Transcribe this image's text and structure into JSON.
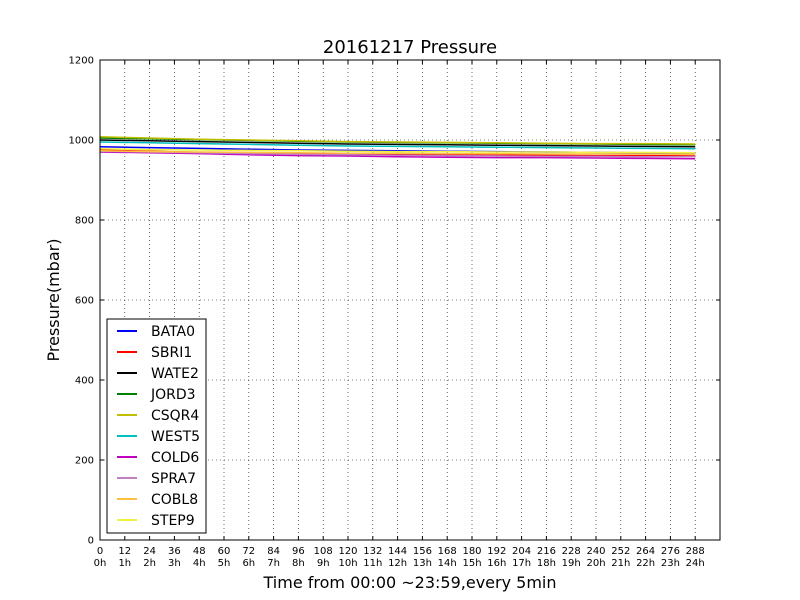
{
  "chart_data": {
    "type": "line",
    "title": "20161217 Pressure",
    "xlabel": "Time from 00:00 ~23:59,every 5min",
    "ylabel": "Pressure(mbar)",
    "xlim": [
      0,
      300
    ],
    "ylim": [
      0,
      1200
    ],
    "grid": true,
    "legend_position": "lower-left",
    "y_ticks": [
      0,
      200,
      400,
      600,
      800,
      1000,
      1200
    ],
    "x_ticks": [
      {
        "value": 0,
        "line1": "0",
        "line2": "0h"
      },
      {
        "value": 12,
        "line1": "12",
        "line2": "1h"
      },
      {
        "value": 24,
        "line1": "24",
        "line2": "2h"
      },
      {
        "value": 36,
        "line1": "36",
        "line2": "3h"
      },
      {
        "value": 48,
        "line1": "48",
        "line2": "4h"
      },
      {
        "value": 60,
        "line1": "60",
        "line2": "5h"
      },
      {
        "value": 72,
        "line1": "72",
        "line2": "6h"
      },
      {
        "value": 84,
        "line1": "84",
        "line2": "7h"
      },
      {
        "value": 96,
        "line1": "96",
        "line2": "8h"
      },
      {
        "value": 108,
        "line1": "108",
        "line2": "9h"
      },
      {
        "value": 120,
        "line1": "120",
        "line2": "10h"
      },
      {
        "value": 132,
        "line1": "132",
        "line2": "11h"
      },
      {
        "value": 144,
        "line1": "144",
        "line2": "12h"
      },
      {
        "value": 156,
        "line1": "156",
        "line2": "13h"
      },
      {
        "value": 168,
        "line1": "168",
        "line2": "14h"
      },
      {
        "value": 180,
        "line1": "180",
        "line2": "15h"
      },
      {
        "value": 192,
        "line1": "192",
        "line2": "16h"
      },
      {
        "value": 204,
        "line1": "204",
        "line2": "17h"
      },
      {
        "value": 216,
        "line1": "216",
        "line2": "18h"
      },
      {
        "value": 228,
        "line1": "228",
        "line2": "19h"
      },
      {
        "value": 240,
        "line1": "240",
        "line2": "20h"
      },
      {
        "value": 252,
        "line1": "252",
        "line2": "21h"
      },
      {
        "value": 264,
        "line1": "264",
        "line2": "22h"
      },
      {
        "value": 276,
        "line1": "276",
        "line2": "23h"
      },
      {
        "value": 288,
        "line1": "288",
        "line2": "24h"
      }
    ],
    "x": [
      0,
      24,
      48,
      72,
      96,
      120,
      144,
      168,
      192,
      216,
      240,
      264,
      288
    ],
    "series": [
      {
        "name": "BATA0",
        "color": "#0000ff",
        "values": [
          983,
          981,
          979,
          977,
          975,
          974,
          973,
          972,
          971,
          970,
          969,
          968,
          967
        ]
      },
      {
        "name": "SBRI1",
        "color": "#ff0000",
        "values": [
          975,
          972,
          969,
          967,
          966,
          965,
          964,
          963,
          962,
          962,
          961,
          961,
          960
        ]
      },
      {
        "name": "WATE2",
        "color": "#000000",
        "values": [
          1000,
          998,
          996,
          994,
          992,
          990,
          989,
          988,
          987,
          986,
          985,
          984,
          983
        ]
      },
      {
        "name": "JORD3",
        "color": "#008000",
        "values": [
          1005,
          1003,
          1001,
          999,
          997,
          995,
          994,
          993,
          992,
          991,
          990,
          989,
          988
        ]
      },
      {
        "name": "CSQR4",
        "color": "#bfbf00",
        "values": [
          1008,
          1005,
          1002,
          1000,
          998,
          996,
          995,
          994,
          993,
          992,
          991,
          991,
          990
        ]
      },
      {
        "name": "WEST5",
        "color": "#00bfbf",
        "values": [
          995,
          993,
          991,
          989,
          987,
          985,
          984,
          983,
          982,
          981,
          980,
          979,
          978
        ]
      },
      {
        "name": "COLD6",
        "color": "#bf00bf",
        "values": [
          970,
          968,
          966,
          963,
          961,
          960,
          958,
          957,
          956,
          956,
          955,
          954,
          953
        ]
      },
      {
        "name": "SPRA7",
        "color": "#bf80c0",
        "values": [
          972,
          970,
          968,
          966,
          964,
          963,
          962,
          961,
          960,
          959,
          959,
          958,
          958
        ]
      },
      {
        "name": "COBL8",
        "color": "#ffbf40",
        "values": [
          973,
          971,
          970,
          969,
          968,
          967,
          967,
          966,
          966,
          965,
          965,
          965,
          964
        ]
      },
      {
        "name": "STEP9",
        "color": "#f0f040",
        "values": [
          978,
          976,
          975,
          974,
          973,
          972,
          971,
          971,
          970,
          970,
          969,
          969,
          968
        ]
      }
    ]
  }
}
